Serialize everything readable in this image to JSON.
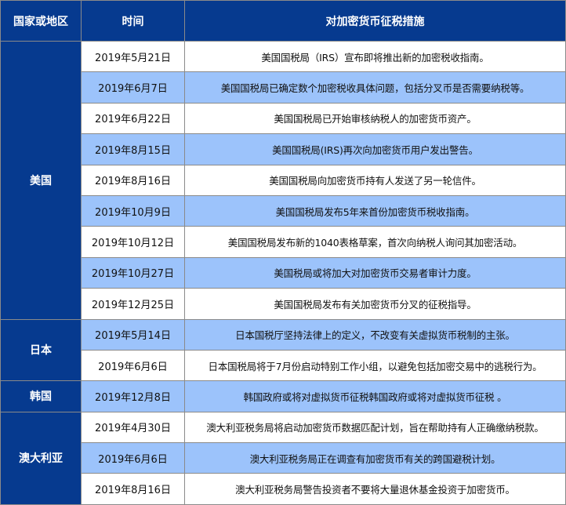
{
  "header": {
    "country": "国家或地区",
    "date": "时间",
    "measure": "对加密货币征税措施"
  },
  "colors": {
    "header_bg": "#063a8f",
    "alt_row": "#9cc3fb",
    "row": "#ffffff"
  },
  "groups": [
    {
      "country": "美国",
      "rows": [
        {
          "date": "2019年5月21日",
          "measure": "美国国税局（IRS）宣布即将推出新的加密税收指南。"
        },
        {
          "date": "2019年6月7日",
          "measure": "美国国税局已确定数个加密税收具体问题，包括分叉币是否需要纳税等。"
        },
        {
          "date": "2019年6月22日",
          "measure": "美国国税局已开始审核纳税人的加密货币资产。"
        },
        {
          "date": "2019年8月15日",
          "measure": "美国国税局(IRS)再次向加密货币用户发出警告。"
        },
        {
          "date": "2019年8月16日",
          "measure": "美国国税局向加密货币持有人发送了另一轮信件。"
        },
        {
          "date": "2019年10月9日",
          "measure": "美国国税局发布5年来首份加密货币税收指南。"
        },
        {
          "date": "2019年10月12日",
          "measure": "美国国税局发布新的1040表格草案，首次向纳税人询问其加密活动。"
        },
        {
          "date": "2019年10月27日",
          "measure": "美国税局或将加大对加密货币交易者审计力度。"
        },
        {
          "date": "2019年12月25日",
          "measure": "美国国税局发布有关加密货币分叉的征税指导。"
        }
      ]
    },
    {
      "country": "日本",
      "rows": [
        {
          "date": "2019年5月14日",
          "measure": "日本国税厅坚持法律上的定义，不改变有关虚拟货币税制的主张。"
        },
        {
          "date": "2019年6月6日",
          "measure": "日本国税局将于7月份启动特别工作小组，以避免包括加密交易中的逃税行为。"
        }
      ]
    },
    {
      "country": "韩国",
      "rows": [
        {
          "date": "2019年12月8日",
          "measure": "韩国政府或将对虚拟货币征税韩国政府或将对虚拟货币征税 。"
        }
      ]
    },
    {
      "country": "澳大利亚",
      "rows": [
        {
          "date": "2019年4月30日",
          "measure": "澳大利亚税务局将启动加密货币数据匹配计划，旨在帮助持有人正确缴纳税款。"
        },
        {
          "date": "2019年6月6日",
          "measure": "澳大利亚税务局正在调查有加密货币有关的跨国避税计划。"
        },
        {
          "date": "2019年8月16日",
          "measure": "澳大利亚税务局警告投资者不要将大量退休基金投资于加密货币。"
        }
      ]
    }
  ]
}
